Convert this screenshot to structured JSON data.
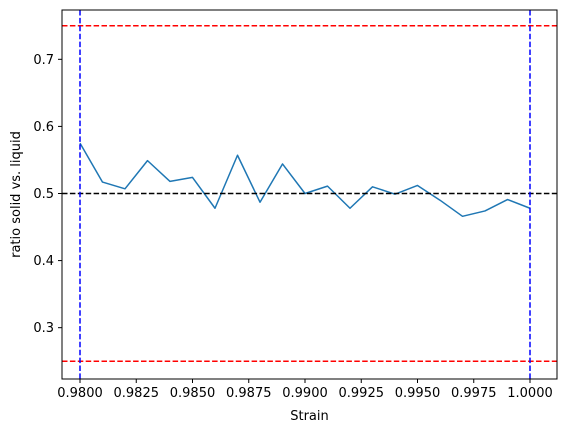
{
  "chart_data": {
    "type": "line",
    "title": "",
    "xlabel": "Strain",
    "ylabel": "ratio solid vs. liquid",
    "xlim": [
      0.9792,
      1.0012
    ],
    "ylim": [
      0.2235,
      0.7735
    ],
    "xticks": [
      0.98,
      0.9825,
      0.985,
      0.9875,
      0.99,
      0.9925,
      0.995,
      0.9975,
      1.0
    ],
    "xtick_labels": [
      "0.9800",
      "0.9825",
      "0.9850",
      "0.9875",
      "0.9900",
      "0.9925",
      "0.9950",
      "0.9975",
      "1.0000"
    ],
    "yticks": [
      0.3,
      0.4,
      0.5,
      0.6,
      0.7
    ],
    "ytick_labels": [
      "0.3",
      "0.4",
      "0.5",
      "0.6",
      "0.7"
    ],
    "grid": false,
    "series": [
      {
        "color": "#1f77b4",
        "x": [
          0.98,
          0.981,
          0.982,
          0.983,
          0.984,
          0.985,
          0.986,
          0.987,
          0.988,
          0.989,
          0.99,
          0.991,
          0.992,
          0.993,
          0.994,
          0.995,
          0.996,
          0.997,
          0.998,
          0.999,
          1.0
        ],
        "y": [
          0.575,
          0.517,
          0.507,
          0.549,
          0.518,
          0.524,
          0.478,
          0.557,
          0.487,
          0.544,
          0.5,
          0.511,
          0.478,
          0.51,
          0.499,
          0.512,
          0.49,
          0.466,
          0.474,
          0.491,
          0.478
        ]
      }
    ],
    "hlines": [
      {
        "y": 0.75,
        "color": "#ff0000",
        "style": "dashed"
      },
      {
        "y": 0.5,
        "color": "#000000",
        "style": "dashed"
      },
      {
        "y": 0.25,
        "color": "#ff0000",
        "style": "dashed"
      }
    ],
    "vlines": [
      {
        "x": 0.98,
        "color": "#0000ff",
        "style": "dashed"
      },
      {
        "x": 1.0,
        "color": "#0000ff",
        "style": "dashed"
      }
    ]
  }
}
